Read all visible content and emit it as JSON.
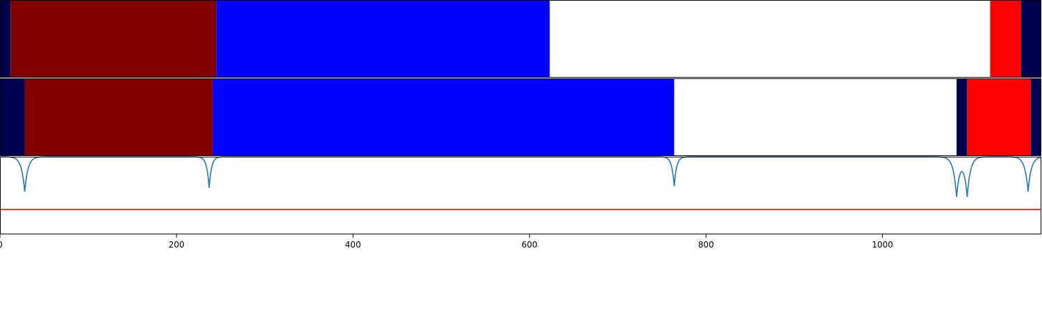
{
  "chart_data": {
    "type": "segmentation",
    "xlim": [
      0,
      1180
    ],
    "xticks": [
      0,
      200,
      400,
      600,
      800,
      1000
    ],
    "colors": {
      "background": "#000050",
      "class_a": "#800000",
      "class_b": "#0000ff",
      "class_c": "#ffffff",
      "class_d": "#ff0000",
      "boundary_curve": "#1f77b4",
      "threshold": "#ff0000",
      "frame": "#000000"
    },
    "rows": [
      {
        "segments": [
          {
            "start": 0,
            "end": 12,
            "color": "#000050"
          },
          {
            "start": 12,
            "end": 245,
            "color": "#800000"
          },
          {
            "start": 245,
            "end": 623,
            "color": "#0000ff"
          },
          {
            "start": 623,
            "end": 1122,
            "color": "#ffffff"
          },
          {
            "start": 1122,
            "end": 1157,
            "color": "#ff0000"
          },
          {
            "start": 1157,
            "end": 1180,
            "color": "#000050"
          }
        ]
      },
      {
        "segments": [
          {
            "start": 0,
            "end": 28,
            "color": "#000050"
          },
          {
            "start": 28,
            "end": 241,
            "color": "#800000"
          },
          {
            "start": 241,
            "end": 764,
            "color": "#0000ff"
          },
          {
            "start": 764,
            "end": 1084,
            "color": "#ffffff"
          },
          {
            "start": 1084,
            "end": 1096,
            "color": "#000050"
          },
          {
            "start": 1096,
            "end": 1168,
            "color": "#ff0000"
          },
          {
            "start": 1168,
            "end": 1180,
            "color": "#000050"
          }
        ]
      }
    ],
    "probability_curve": {
      "ylim": [
        0,
        1
      ],
      "baseline": 1.0,
      "threshold": 0.32,
      "dips": [
        {
          "x": 28,
          "width": 4,
          "depth": 0.45
        },
        {
          "x": 237,
          "width": 3,
          "depth": 0.4
        },
        {
          "x": 764,
          "width": 3,
          "depth": 0.38
        },
        {
          "x": 1084,
          "width": 4,
          "depth": 0.5
        },
        {
          "x": 1096,
          "width": 4,
          "depth": 0.5
        },
        {
          "x": 1165,
          "width": 4,
          "depth": 0.45
        }
      ]
    }
  }
}
